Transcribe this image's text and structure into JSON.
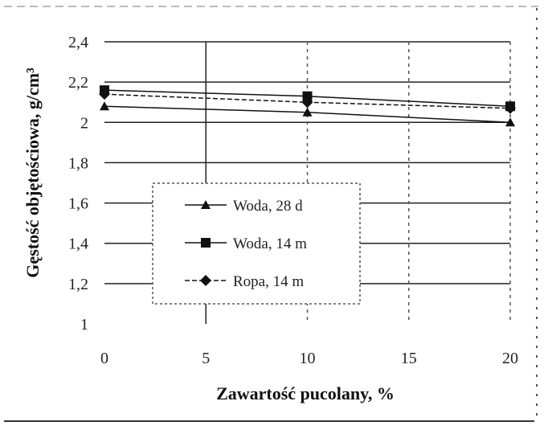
{
  "chart_data": {
    "type": "line",
    "xlabel": "Zawartość pucolany, %",
    "ylabel": "Gęstość objętościowa, g/cm³",
    "x": [
      0,
      10,
      20
    ],
    "x_ticks": [
      "0",
      "5",
      "10",
      "15",
      "20"
    ],
    "x_tick_values": [
      0,
      5,
      10,
      15,
      20
    ],
    "y_ticks": [
      "1",
      "1,2",
      "1,4",
      "1,6",
      "1,8",
      "2",
      "2,2",
      "2,4"
    ],
    "y_tick_values": [
      1,
      1.2,
      1.4,
      1.6,
      1.8,
      2.0,
      2.2,
      2.4
    ],
    "xlim": [
      0,
      20
    ],
    "ylim": [
      1,
      2.4
    ],
    "grid": true,
    "legend_position": "bottom-left",
    "series": [
      {
        "name": "Woda, 28 d",
        "marker": "triangle",
        "values": [
          2.08,
          2.05,
          2.0
        ]
      },
      {
        "name": "Woda, 14 m",
        "marker": "square",
        "values": [
          2.16,
          2.13,
          2.08
        ]
      },
      {
        "name": "Ropa, 14 m",
        "marker": "diamond",
        "values": [
          2.14,
          2.1,
          2.07
        ]
      }
    ]
  }
}
